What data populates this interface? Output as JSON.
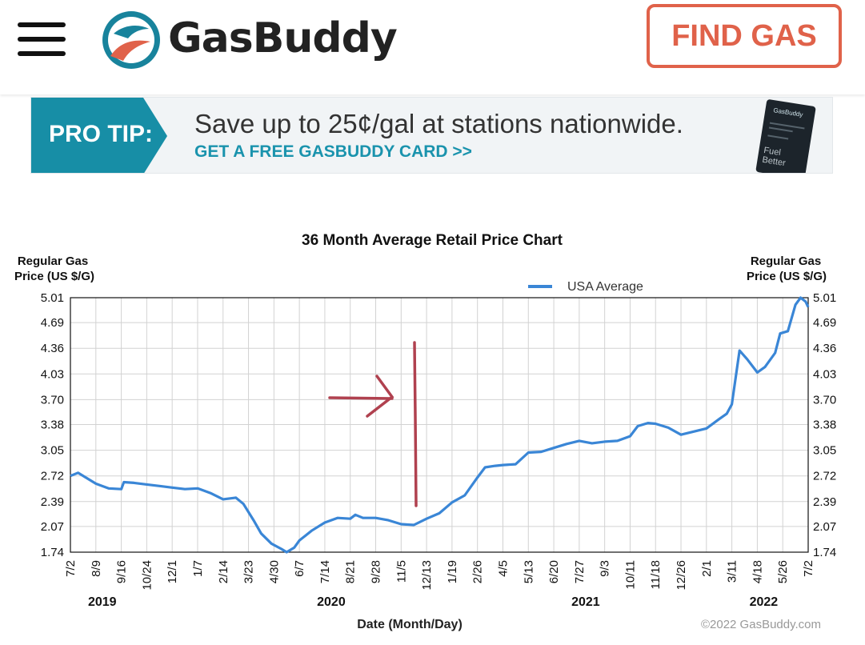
{
  "header": {
    "brand": "GasBuddy",
    "find_gas_label": "FIND GAS"
  },
  "banner": {
    "tag": "PRO TIP:",
    "headline": "Save up to 25¢/gal at stations nationwide.",
    "cta": "GET A FREE GASBUDDY CARD >>",
    "card_brand": "GasBuddy",
    "card_tagline": "Fuel Better"
  },
  "chart_data": {
    "type": "line",
    "title": "36 Month Average Retail Price Chart",
    "ylabel_left": "Regular Gas Price (US $/G)",
    "ylabel_left_lines": [
      "Regular Gas",
      "Price (US $/G)"
    ],
    "ylabel_right_lines": [
      "Regular Gas",
      "Price (US $/G)"
    ],
    "xlabel": "Date (Month/Day)",
    "copyright": "©2022 GasBuddy.com",
    "legend": "USA Average",
    "ylim": [
      1.74,
      5.01
    ],
    "yticks": [
      "5.01",
      "4.69",
      "4.36",
      "4.03",
      "3.70",
      "3.38",
      "3.05",
      "2.72",
      "2.39",
      "2.07",
      "1.74"
    ],
    "xticks": [
      "7/2",
      "8/9",
      "9/16",
      "10/24",
      "12/1",
      "1/7",
      "2/14",
      "3/23",
      "4/30",
      "6/7",
      "7/14",
      "8/21",
      "9/28",
      "11/5",
      "12/13",
      "1/19",
      "2/26",
      "4/5",
      "5/13",
      "6/20",
      "7/27",
      "9/3",
      "10/11",
      "11/18",
      "12/26",
      "2/1",
      "3/11",
      "4/18",
      "5/26",
      "7/2"
    ],
    "years": [
      {
        "label": "2019",
        "tick": 1
      },
      {
        "label": "2020",
        "tick": 10
      },
      {
        "label": "2021",
        "tick": 20
      },
      {
        "label": "2022",
        "tick": 27
      }
    ],
    "series": [
      {
        "name": "USA Average",
        "color": "#3a86d6",
        "t": [
          0,
          0.3,
          0.6,
          1.0,
          1.5,
          2.0,
          2.1,
          2.5,
          3.0,
          3.5,
          4.0,
          4.5,
          5.0,
          5.5,
          6.0,
          6.5,
          6.8,
          7.2,
          7.5,
          7.9,
          8.3,
          8.5,
          8.8,
          9.0,
          9.5,
          10.0,
          10.5,
          11.0,
          11.2,
          11.5,
          12.0,
          12.5,
          13.0,
          13.5,
          14.0,
          14.5,
          15.0,
          15.5,
          16.0,
          16.3,
          16.7,
          17.0,
          17.5,
          18.0,
          18.5,
          19.0,
          19.5,
          20.0,
          20.5,
          21.0,
          21.5,
          22.0,
          22.3,
          22.7,
          23.0,
          23.5,
          24.0,
          24.5,
          25.0,
          25.5,
          25.8,
          26.0,
          26.3,
          26.6,
          27.0,
          27.3,
          27.7,
          27.9,
          28.2,
          28.5,
          28.7,
          28.9,
          29.0
        ],
        "values": [
          2.72,
          2.76,
          2.7,
          2.62,
          2.56,
          2.55,
          2.64,
          2.63,
          2.61,
          2.59,
          2.57,
          2.55,
          2.56,
          2.5,
          2.42,
          2.44,
          2.36,
          2.15,
          1.98,
          1.85,
          1.78,
          1.74,
          1.8,
          1.89,
          2.02,
          2.12,
          2.18,
          2.17,
          2.22,
          2.18,
          2.18,
          2.15,
          2.1,
          2.09,
          2.17,
          2.24,
          2.38,
          2.47,
          2.7,
          2.83,
          2.85,
          2.86,
          2.87,
          3.02,
          3.03,
          3.08,
          3.13,
          3.17,
          3.14,
          3.16,
          3.17,
          3.23,
          3.36,
          3.4,
          3.39,
          3.34,
          3.25,
          3.29,
          3.33,
          3.45,
          3.52,
          3.64,
          4.33,
          4.22,
          4.05,
          4.12,
          4.3,
          4.55,
          4.58,
          4.92,
          5.01,
          4.96,
          4.89
        ]
      }
    ]
  }
}
